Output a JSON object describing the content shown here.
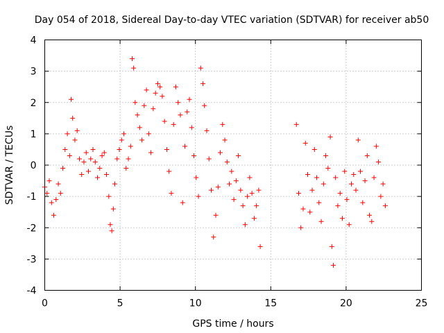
{
  "chart_data": {
    "type": "scatter",
    "title": "Day 054 of 2018, Sidereal Day-to-day VTEC variation (SDTVAR) for receiver ab50",
    "xlabel": "GPS time / hours",
    "ylabel": "SDTVAR / TECUs",
    "xlim": [
      0,
      25
    ],
    "ylim": [
      -4,
      4
    ],
    "xticks": [
      0,
      5,
      10,
      15,
      20,
      25
    ],
    "yticks": [
      -4,
      -3,
      -2,
      -1,
      0,
      1,
      2,
      3,
      4
    ],
    "xtick_labels": [
      "0",
      "5",
      "10",
      "15",
      "20",
      "25"
    ],
    "ytick_labels": [
      "-4",
      "-3",
      "-2",
      "-1",
      "0",
      "1",
      "2",
      "3",
      "4"
    ],
    "grid": true,
    "marker": "+",
    "color": "#ff0000",
    "series": [
      {
        "name": "ab50",
        "x": [
          0.0,
          0.15,
          0.3,
          0.45,
          0.6,
          0.75,
          0.9,
          1.05,
          1.2,
          1.35,
          1.5,
          1.65,
          1.75,
          1.85,
          2.0,
          2.15,
          2.3,
          2.45,
          2.6,
          2.75,
          2.9,
          3.05,
          3.2,
          3.35,
          3.5,
          3.65,
          3.8,
          3.95,
          4.1,
          4.25,
          4.35,
          4.45,
          4.55,
          4.65,
          4.8,
          4.95,
          5.1,
          5.25,
          5.4,
          5.55,
          5.7,
          5.8,
          5.9,
          6.0,
          6.15,
          6.3,
          6.45,
          6.6,
          6.75,
          6.9,
          7.05,
          7.2,
          7.35,
          7.5,
          7.65,
          7.8,
          7.95,
          8.1,
          8.25,
          8.4,
          8.55,
          8.7,
          8.85,
          9.0,
          9.15,
          9.3,
          9.45,
          9.6,
          9.75,
          9.9,
          10.05,
          10.2,
          10.35,
          10.5,
          10.6,
          10.75,
          10.9,
          11.05,
          11.2,
          11.35,
          11.5,
          11.65,
          11.8,
          11.95,
          12.1,
          12.25,
          12.4,
          12.55,
          12.7,
          12.85,
          13.0,
          13.15,
          13.3,
          13.45,
          13.6,
          13.75,
          13.9,
          14.05,
          14.2,
          14.3,
          16.7,
          16.85,
          17.0,
          17.15,
          17.3,
          17.45,
          17.6,
          17.75,
          17.9,
          18.05,
          18.2,
          18.35,
          18.5,
          18.65,
          18.8,
          18.95,
          19.05,
          19.15,
          19.3,
          19.45,
          19.6,
          19.75,
          19.9,
          20.05,
          20.2,
          20.35,
          20.5,
          20.65,
          20.8,
          20.95,
          21.1,
          21.25,
          21.4,
          21.55,
          21.7,
          21.85,
          22.0,
          22.15,
          22.3,
          22.45,
          22.6
        ],
        "y": [
          -0.7,
          -0.9,
          -0.5,
          -1.2,
          -1.6,
          -1.1,
          -0.6,
          -0.9,
          -0.1,
          0.5,
          1.0,
          0.3,
          2.1,
          1.5,
          0.8,
          1.1,
          0.2,
          -0.3,
          0.1,
          0.4,
          -0.2,
          0.2,
          0.5,
          0.1,
          -0.4,
          -0.1,
          0.3,
          0.4,
          -0.3,
          -1.0,
          -1.9,
          -2.1,
          -1.4,
          -0.6,
          0.2,
          0.5,
          0.8,
          1.0,
          -0.1,
          0.2,
          0.6,
          3.4,
          3.1,
          2.0,
          1.6,
          1.2,
          0.8,
          1.9,
          2.4,
          1.0,
          0.4,
          1.8,
          2.3,
          2.6,
          2.5,
          2.2,
          1.4,
          0.5,
          -0.2,
          -0.9,
          1.3,
          2.5,
          2.0,
          1.6,
          -1.2,
          0.6,
          1.7,
          2.1,
          1.2,
          0.3,
          -0.4,
          -1.0,
          3.1,
          2.6,
          1.9,
          1.1,
          0.2,
          -0.8,
          -2.3,
          -1.6,
          -0.7,
          0.4,
          1.3,
          0.8,
          0.1,
          -0.6,
          -0.2,
          -1.1,
          -0.5,
          0.3,
          -0.8,
          -1.3,
          -1.9,
          -1.0,
          -0.4,
          -0.9,
          -1.7,
          -1.3,
          -0.8,
          -2.6,
          1.3,
          -0.9,
          -2.0,
          -1.4,
          0.7,
          -0.3,
          -1.5,
          -0.8,
          0.5,
          -0.4,
          -1.2,
          -1.8,
          -0.6,
          0.3,
          -0.1,
          0.9,
          -2.6,
          -3.2,
          -0.4,
          -1.3,
          -0.9,
          -1.7,
          -0.2,
          -1.1,
          -1.9,
          -0.6,
          -0.3,
          -0.8,
          0.8,
          -0.2,
          -1.2,
          -0.5,
          0.3,
          -1.6,
          -1.8,
          -0.4,
          0.6,
          0.1,
          -1.0,
          -0.6,
          -1.3
        ]
      }
    ]
  }
}
